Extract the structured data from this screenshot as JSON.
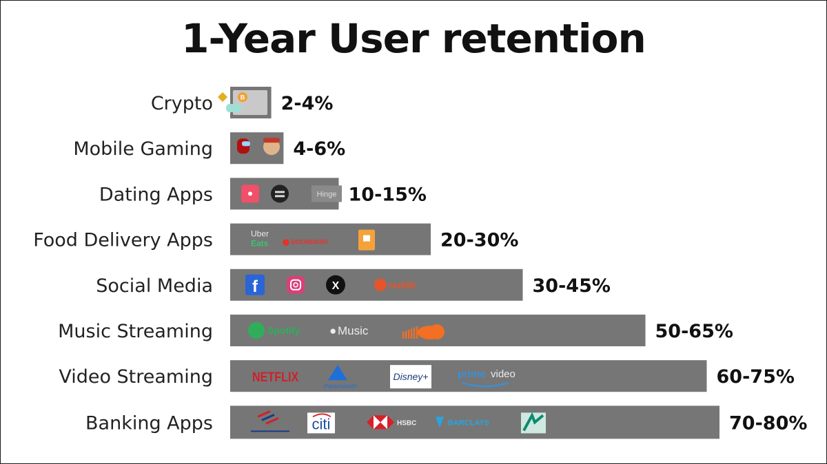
{
  "chart_data": {
    "type": "bar",
    "orientation": "horizontal",
    "title": "1-Year User retention",
    "categories": [
      "Crypto",
      "Mobile Gaming",
      "Dating Apps",
      "Food Delivery Apps",
      "Social Media",
      "Music Streaming",
      "Video Streaming",
      "Banking Apps"
    ],
    "ranges": [
      [
        2,
        4
      ],
      [
        4,
        6
      ],
      [
        10,
        15
      ],
      [
        20,
        30
      ],
      [
        30,
        45
      ],
      [
        50,
        65
      ],
      [
        60,
        75
      ],
      [
        70,
        80
      ]
    ],
    "value_labels": [
      "2-4%",
      "4-6%",
      "10-15%",
      "20-30%",
      "30-45%",
      "50-65%",
      "60-75%",
      "70-80%"
    ],
    "bar_color": "#767676",
    "xlim": [
      0,
      100
    ],
    "grid": false,
    "legend": "none",
    "logos": [
      [
        "bitcoin-logo",
        "binance-logo",
        "coinbase-logo"
      ],
      [
        "among-us-logo",
        "subway-surfers-logo"
      ],
      [
        "tinder-logo",
        "bumble-logo",
        "Hinge"
      ],
      [
        "Uber Eats",
        "DOORDASH",
        "grubhub-logo"
      ],
      [
        "facebook-logo",
        "instagram-logo",
        "x-logo",
        "reddit"
      ],
      [
        "Spotify",
        "Music",
        "soundcloud-logo"
      ],
      [
        "NETFLIX",
        "Paramount+",
        "Disney+",
        "prime video"
      ],
      [
        "bank-of-america-logo",
        "citi",
        "HSBC",
        "BARCLAYS",
        "credit-agricole-logo"
      ]
    ]
  }
}
